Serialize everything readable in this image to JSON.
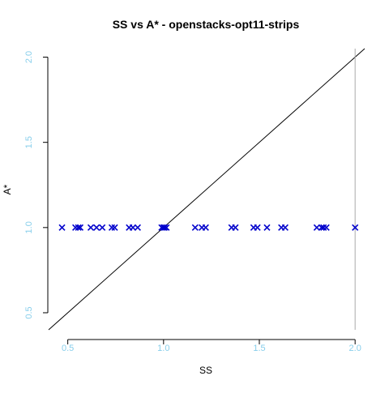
{
  "chart_data": {
    "type": "scatter",
    "title": "SS vs A* - openstacks-opt11-strips",
    "xlabel": "SS",
    "ylabel": "A*",
    "xlim": [
      0.4,
      2.05
    ],
    "ylim": [
      0.4,
      2.05
    ],
    "x_ticks": [
      {
        "value": 0.5,
        "label": "0.5"
      },
      {
        "value": 1.0,
        "label": "1.0"
      },
      {
        "value": 1.5,
        "label": "1.5"
      },
      {
        "value": 2.0,
        "label": "2.0"
      }
    ],
    "y_ticks": [
      {
        "value": 0.5,
        "label": "0.5"
      },
      {
        "value": 1.0,
        "label": "1.0"
      },
      {
        "value": 1.5,
        "label": "1.5"
      },
      {
        "value": 2.0,
        "label": "2.0"
      }
    ],
    "reference_line": {
      "type": "y=x"
    },
    "vertical_line": {
      "x": 2.0
    },
    "marker": "x",
    "points": [
      {
        "x": 0.47,
        "y": 1.0
      },
      {
        "x": 0.54,
        "y": 1.0
      },
      {
        "x": 0.555,
        "y": 1.0
      },
      {
        "x": 0.565,
        "y": 1.0
      },
      {
        "x": 0.62,
        "y": 1.0
      },
      {
        "x": 0.65,
        "y": 1.0
      },
      {
        "x": 0.68,
        "y": 1.0
      },
      {
        "x": 0.73,
        "y": 1.0
      },
      {
        "x": 0.745,
        "y": 1.0
      },
      {
        "x": 0.82,
        "y": 1.0
      },
      {
        "x": 0.84,
        "y": 1.0
      },
      {
        "x": 0.865,
        "y": 1.0
      },
      {
        "x": 0.99,
        "y": 1.0
      },
      {
        "x": 1.0,
        "y": 1.0
      },
      {
        "x": 1.005,
        "y": 1.0
      },
      {
        "x": 1.015,
        "y": 1.0
      },
      {
        "x": 1.165,
        "y": 1.0
      },
      {
        "x": 1.2,
        "y": 1.0
      },
      {
        "x": 1.22,
        "y": 1.0
      },
      {
        "x": 1.355,
        "y": 1.0
      },
      {
        "x": 1.375,
        "y": 1.0
      },
      {
        "x": 1.47,
        "y": 1.0
      },
      {
        "x": 1.49,
        "y": 1.0
      },
      {
        "x": 1.54,
        "y": 1.0
      },
      {
        "x": 1.615,
        "y": 1.0
      },
      {
        "x": 1.635,
        "y": 1.0
      },
      {
        "x": 1.8,
        "y": 1.0
      },
      {
        "x": 1.825,
        "y": 1.0
      },
      {
        "x": 1.835,
        "y": 1.0
      },
      {
        "x": 1.85,
        "y": 1.0
      },
      {
        "x": 2.0,
        "y": 1.0
      }
    ],
    "colors": {
      "points": "#0000cc",
      "tick_labels": "#87ceeb",
      "axes": "#000000",
      "reference_line": "#000000",
      "vertical_line": "#aaaaaa",
      "text": "#000000"
    }
  }
}
